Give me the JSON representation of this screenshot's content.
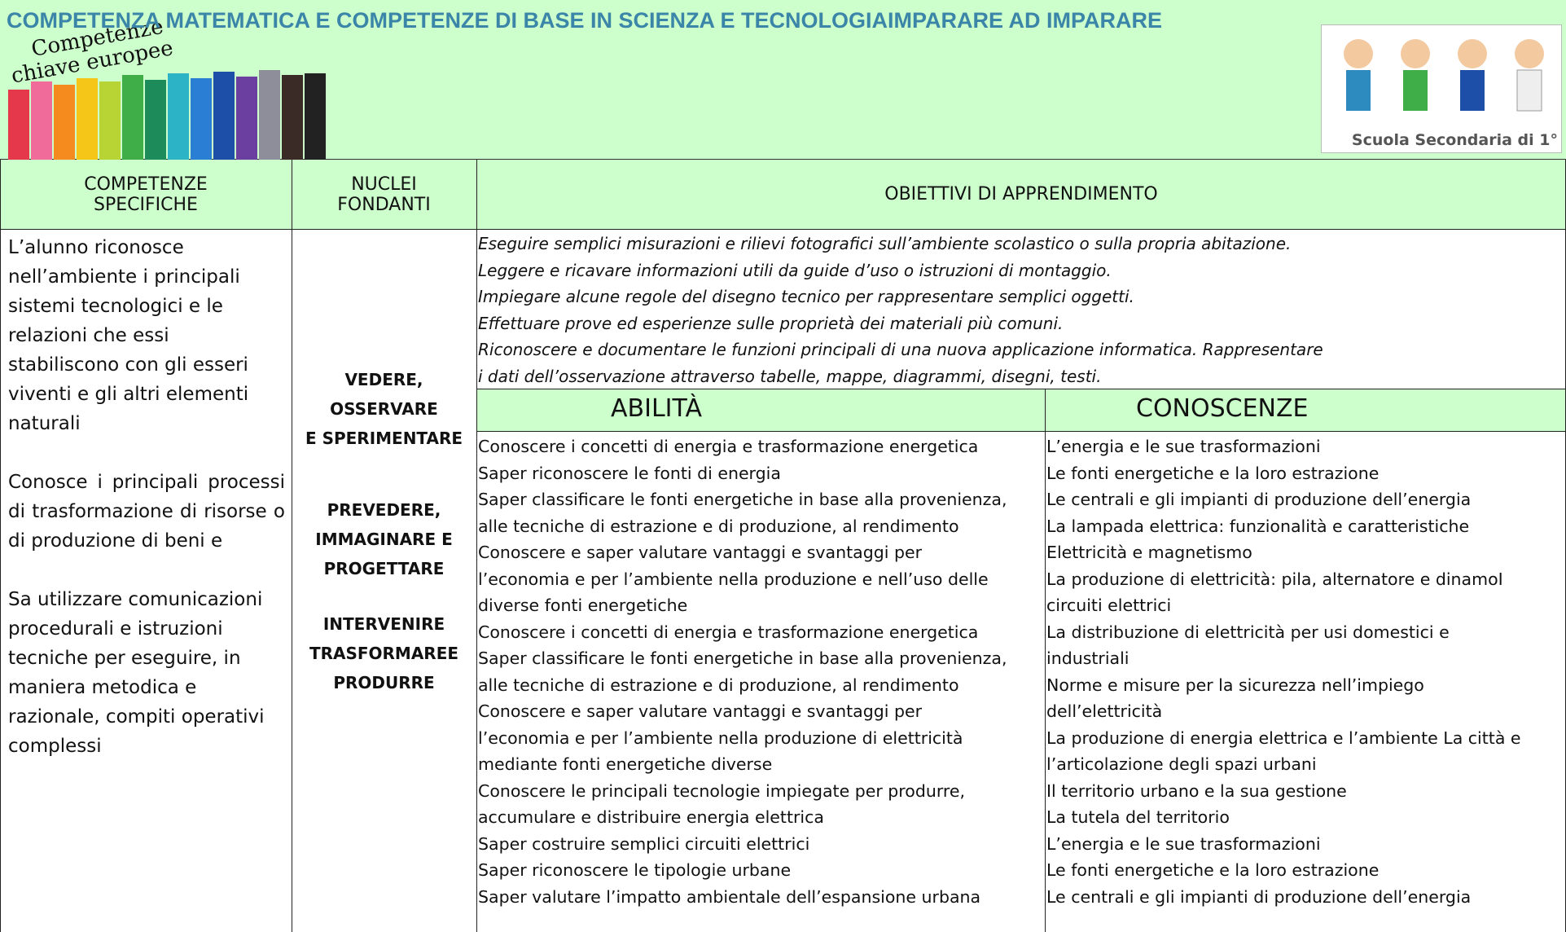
{
  "header": {
    "title": "COMPETENZA MATEMATICA E COMPETENZE DI BASE IN SCIENZA E TECNOLOGIAIMPARARE AD IMPARARE",
    "logo_lines": [
      "Competenze",
      "chiave europee"
    ],
    "badge": "Scuola Secondaria di 1°"
  },
  "table": {
    "headers": [
      "COMPETENZE SPECIFICHE",
      "NUCLEI FONDANTI",
      "OBIETTIVI DI APPRENDIMENTO"
    ],
    "competenze": [
      "L’alunno riconosce nell’ambiente i principali sistemi tecnologici e le relazioni che essi stabiliscono con gli esseri viventi e gli altri elementi naturali",
      "Conosce i principali processi di trasformazione di risorse o di produzione di beni e",
      "Sa utilizzare comunicazioni procedurali e istruzioni tecniche per eseguire, in maniera metodica e razionale, compiti operativi complessi"
    ],
    "nuclei": [
      "VEDERE,\nOSSERVARE\nE SPERIMENTARE",
      "PREVEDERE,\nIMMAGINARE E\nPROGETTARE",
      "INTERVENIRE\nTRASFORMAREE\nPRODURRE"
    ],
    "obiettivi": [
      "Eseguire semplici misurazioni e rilievi fotografici sull’ambiente scolastico o sulla propria abitazione.",
      "Leggere e ricavare informazioni utili da guide d’uso o istruzioni di montaggio.",
      "Impiegare alcune regole del disegno tecnico per rappresentare semplici oggetti.",
      "Effettuare prove ed esperienze sulle proprietà dei materiali più comuni.",
      "Riconoscere e documentare le funzioni principali di una nuova applicazione informatica. Rappresentare",
      "i dati dell’osservazione attraverso tabelle, mappe, diagrammi, disegni, testi."
    ],
    "abilita_header": "ABILITÀ",
    "conoscenze_header": "CONOSCENZE",
    "abilita": [
      "Conoscere i concetti di energia e trasformazione energetica",
      "Saper riconoscere le fonti di energia",
      "Saper classificare le fonti energetiche in base alla provenienza,",
      "alle tecniche di estrazione e di produzione, al rendimento",
      "Conoscere e saper valutare vantaggi e svantaggi per",
      "l’economia e per l’ambiente nella produzione e nell’uso delle",
      "diverse fonti energetiche",
      "Conoscere i concetti di energia e trasformazione energetica",
      "Saper classificare le fonti energetiche in base alla provenienza,",
      "alle tecniche di estrazione e di produzione, al rendimento",
      "Conoscere e saper valutare vantaggi e svantaggi per",
      "l’economia e per l’ambiente nella produzione di elettricità",
      "mediante fonti energetiche diverse",
      "Conoscere le principali tecnologie impiegate per produrre,",
      "accumulare e distribuire energia elettrica",
      "Saper costruire semplici circuiti elettrici",
      "Saper riconoscere le tipologie urbane",
      "Saper valutare l’impatto ambientale dell’espansione urbana"
    ],
    "conoscenze": [
      "L’energia e le sue trasformazioni",
      "Le fonti energetiche e la loro estrazione",
      "Le centrali e gli impianti di produzione dell’energia",
      "La lampada elettrica: funzionalità e caratteristiche",
      "Elettricità e magnetismo",
      "La produzione di elettricità: pila, alternatore e dinamoI",
      "circuiti elettrici",
      "La distribuzione di elettricità per usi domestici e",
      "industriali",
      "Norme e misure per la sicurezza nell’impiego",
      "dell’elettricità",
      "La produzione di energia elettrica e l’ambiente La città e",
      "l’articolazione degli spazi urbani",
      "Il territorio urbano e la sua gestione",
      "La tutela del territorio",
      "L’energia e le sue trasformazioni",
      "Le fonti energetiche e la loro estrazione",
      "Le centrali e gli impianti di produzione dell’energia"
    ]
  }
}
